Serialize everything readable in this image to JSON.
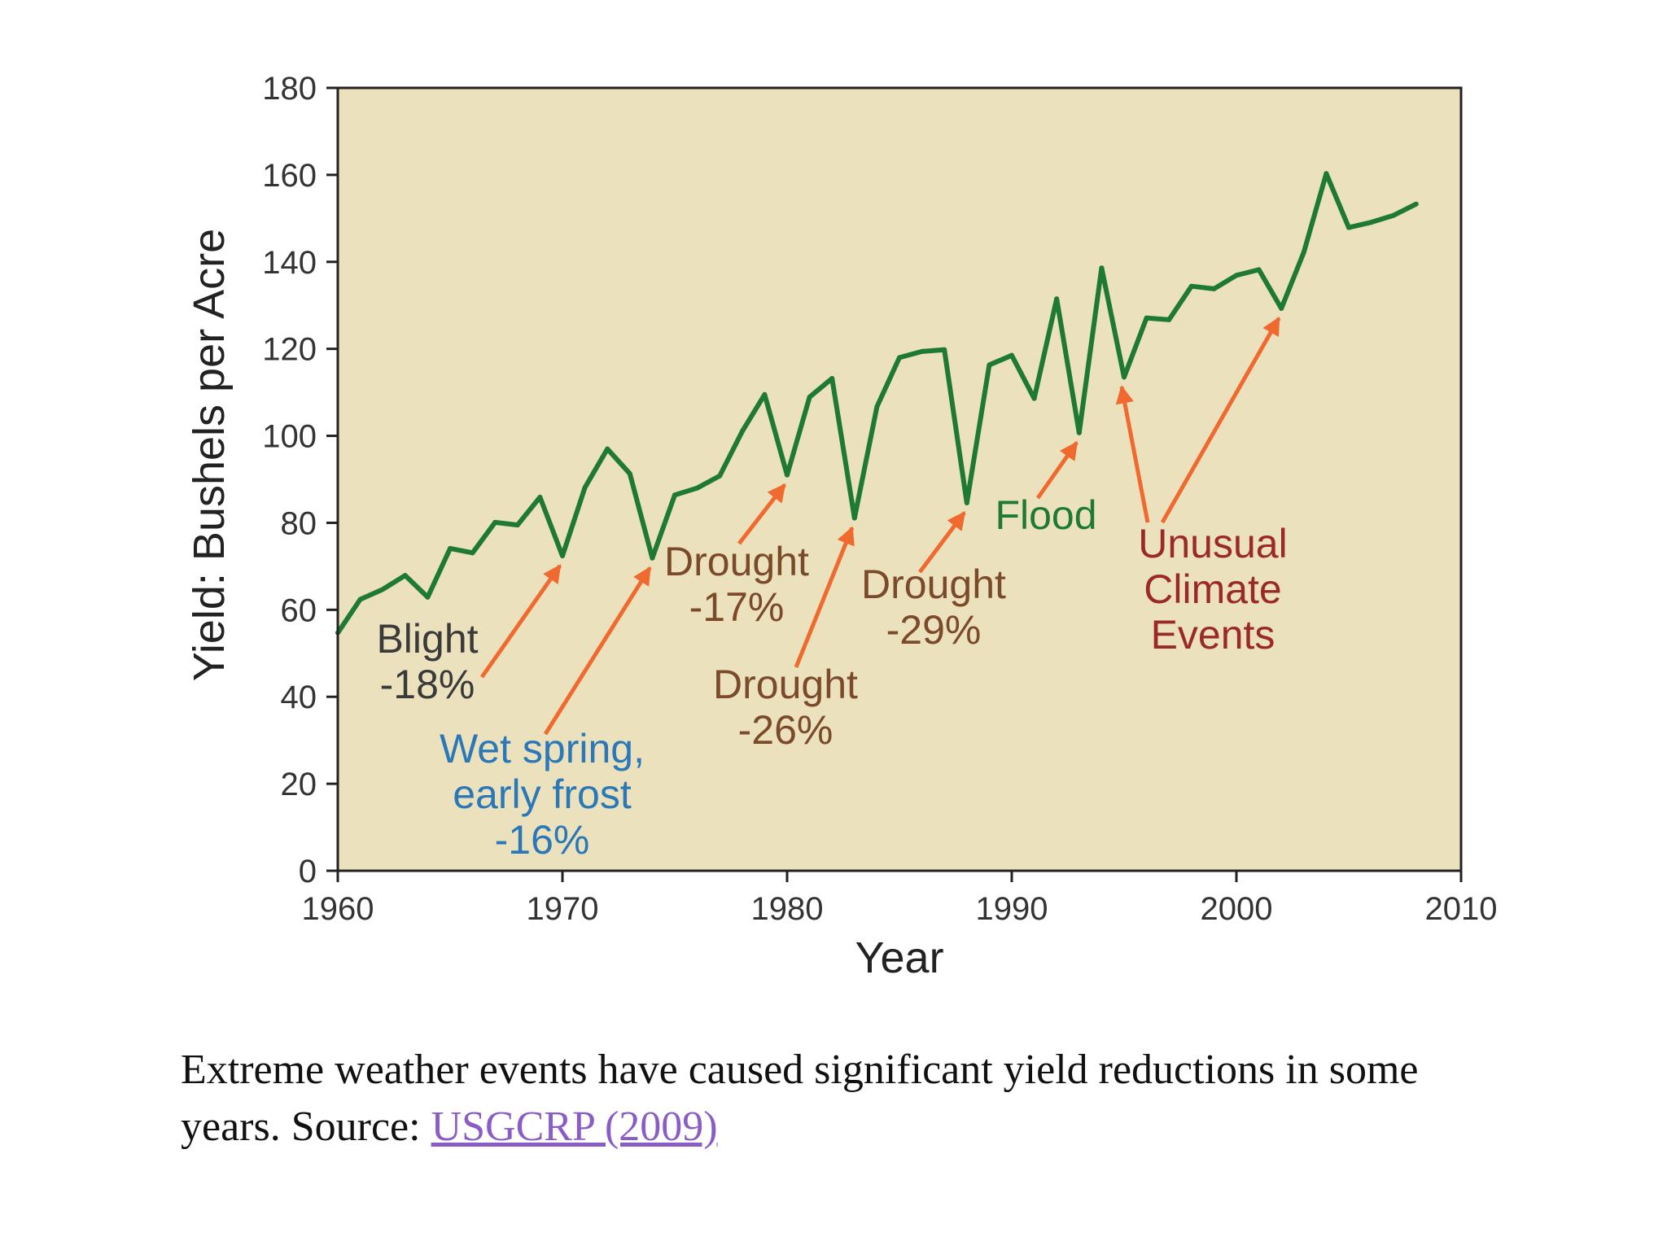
{
  "chart_data": {
    "type": "line",
    "title": "",
    "xlabel": "Year",
    "ylabel": "Yield: Bushels per Acre",
    "xlim": [
      1960,
      2010
    ],
    "ylim": [
      0,
      180
    ],
    "x_ticks": [
      1960,
      1970,
      1980,
      1990,
      2000,
      2010
    ],
    "y_ticks": [
      0,
      20,
      40,
      60,
      80,
      100,
      120,
      140,
      160,
      180
    ],
    "grid": false,
    "colors": {
      "plot_bg": "#ebe1bd",
      "line": "#1e7a33",
      "arrow": "#f06a30",
      "border": "#222222"
    },
    "series": [
      {
        "x": [
          1960,
          1961,
          1962,
          1963,
          1964,
          1965,
          1966,
          1967,
          1968,
          1969,
          1970,
          1971,
          1972,
          1973,
          1974,
          1975,
          1976,
          1977,
          1978,
          1979,
          1980,
          1981,
          1982,
          1983,
          1984,
          1985,
          1986,
          1987,
          1988,
          1989,
          1990,
          1991,
          1992,
          1993,
          1994,
          1995,
          1996,
          1997,
          1998,
          1999,
          2000,
          2001,
          2002,
          2003,
          2004,
          2005,
          2006,
          2007,
          2008
        ],
        "values": [
          54.7,
          62.4,
          64.7,
          67.9,
          62.9,
          74.1,
          73.1,
          80.1,
          79.5,
          85.9,
          72.4,
          88.1,
          97.0,
          91.3,
          71.9,
          86.4,
          88.0,
          90.8,
          101.0,
          109.5,
          91.0,
          108.9,
          113.2,
          81.1,
          106.7,
          118.0,
          119.4,
          119.8,
          84.6,
          116.3,
          118.5,
          108.6,
          131.5,
          100.7,
          138.6,
          113.5,
          127.1,
          126.7,
          134.4,
          133.8,
          136.9,
          138.2,
          129.3,
          142.2,
          160.3,
          147.9,
          149.1,
          150.7,
          153.3
        ]
      }
    ],
    "annotations": [
      {
        "lines": [
          "Blight",
          "-18%"
        ],
        "color": "#3a3a3a",
        "target": [
          1970,
          72.4
        ]
      },
      {
        "lines": [
          "Wet spring,",
          "early frost",
          "-16%"
        ],
        "color": "#2a78b8",
        "target": [
          1974,
          71.9
        ]
      },
      {
        "lines": [
          "Drought",
          "-17%"
        ],
        "color": "#7a4a2a",
        "target": [
          1980,
          91.0
        ]
      },
      {
        "lines": [
          "Drought",
          "-26%"
        ],
        "color": "#7a4a2a",
        "target": [
          1983,
          81.1
        ]
      },
      {
        "lines": [
          "Drought",
          "-29%"
        ],
        "color": "#7a4a2a",
        "target": [
          1988,
          84.6
        ]
      },
      {
        "lines": [
          "Flood"
        ],
        "color": "#1e7a33",
        "target": [
          1993,
          100.7
        ]
      },
      {
        "lines": [
          "Unusual",
          "Climate",
          "Events"
        ],
        "color": "#9a2a2a",
        "targets": [
          [
            1995,
            113.5
          ],
          [
            2002,
            129.3
          ]
        ]
      }
    ]
  },
  "caption": {
    "text": "Extreme weather events have caused significant yield reductions in some years. Source: ",
    "link_text": "USGCRP (2009)"
  }
}
